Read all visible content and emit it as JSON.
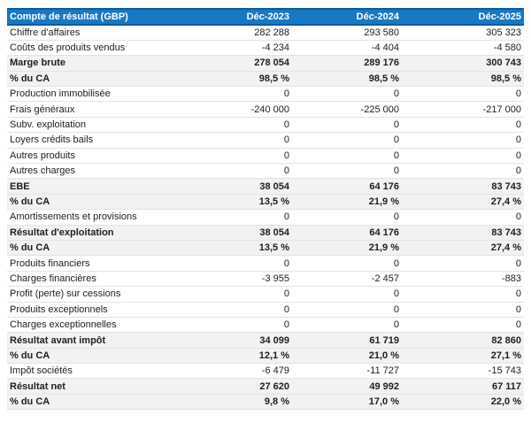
{
  "colors": {
    "header_bg": "#1878c4",
    "header_border": "#0e5a9b",
    "subtotal_bg": "#f2f2f2",
    "row_border": "#e3e3e3",
    "text": "#202020"
  },
  "chart_data": {
    "type": "table",
    "title": "Compte de résultat (GBP)",
    "columns": [
      "Déc-2023",
      "Déc-2024",
      "Déc-2025"
    ],
    "rows": [
      {
        "label": "Chiffre d'affaires",
        "values": [
          "282 288",
          "293 580",
          "305 323"
        ],
        "emphasis": false
      },
      {
        "label": "Coûts des produits vendus",
        "values": [
          "-4 234",
          "-4 404",
          "-4 580"
        ],
        "emphasis": false
      },
      {
        "label": "Marge brute",
        "values": [
          "278 054",
          "289 176",
          "300 743"
        ],
        "emphasis": true
      },
      {
        "label": "% du CA",
        "values": [
          "98,5 %",
          "98,5 %",
          "98,5 %"
        ],
        "emphasis": true
      },
      {
        "label": "Production immobilisée",
        "values": [
          "0",
          "0",
          "0"
        ],
        "emphasis": false
      },
      {
        "label": "Frais généraux",
        "values": [
          "-240 000",
          "-225 000",
          "-217 000"
        ],
        "emphasis": false
      },
      {
        "label": "Subv. exploitation",
        "values": [
          "0",
          "0",
          "0"
        ],
        "emphasis": false
      },
      {
        "label": "Loyers crédits bails",
        "values": [
          "0",
          "0",
          "0"
        ],
        "emphasis": false
      },
      {
        "label": "Autres produits",
        "values": [
          "0",
          "0",
          "0"
        ],
        "emphasis": false
      },
      {
        "label": "Autres charges",
        "values": [
          "0",
          "0",
          "0"
        ],
        "emphasis": false
      },
      {
        "label": "EBE",
        "values": [
          "38 054",
          "64 176",
          "83 743"
        ],
        "emphasis": true
      },
      {
        "label": "% du CA",
        "values": [
          "13,5 %",
          "21,9 %",
          "27,4 %"
        ],
        "emphasis": true
      },
      {
        "label": "Amortissements et provisions",
        "values": [
          "0",
          "0",
          "0"
        ],
        "emphasis": false
      },
      {
        "label": "Résultat d'exploitation",
        "values": [
          "38 054",
          "64 176",
          "83 743"
        ],
        "emphasis": true
      },
      {
        "label": "% du CA",
        "values": [
          "13,5 %",
          "21,9 %",
          "27,4 %"
        ],
        "emphasis": true
      },
      {
        "label": "Produits financiers",
        "values": [
          "0",
          "0",
          "0"
        ],
        "emphasis": false
      },
      {
        "label": "Charges financières",
        "values": [
          "-3 955",
          "-2 457",
          "-883"
        ],
        "emphasis": false
      },
      {
        "label": "Profit (perte) sur cessions",
        "values": [
          "0",
          "0",
          "0"
        ],
        "emphasis": false
      },
      {
        "label": "Produits exceptionnels",
        "values": [
          "0",
          "0",
          "0"
        ],
        "emphasis": false
      },
      {
        "label": "Charges exceptionnelles",
        "values": [
          "0",
          "0",
          "0"
        ],
        "emphasis": false
      },
      {
        "label": "Résultat avant impôt",
        "values": [
          "34 099",
          "61 719",
          "82 860"
        ],
        "emphasis": true
      },
      {
        "label": "% du CA",
        "values": [
          "12,1 %",
          "21,0 %",
          "27,1 %"
        ],
        "emphasis": true
      },
      {
        "label": "Impôt sociétés",
        "values": [
          "-6 479",
          "-11 727",
          "-15 743"
        ],
        "emphasis": false
      },
      {
        "label": "Résultat net",
        "values": [
          "27 620",
          "49 992",
          "67 117"
        ],
        "emphasis": true
      },
      {
        "label": "% du CA",
        "values": [
          "9,8 %",
          "17,0 %",
          "22,0 %"
        ],
        "emphasis": true
      }
    ]
  }
}
